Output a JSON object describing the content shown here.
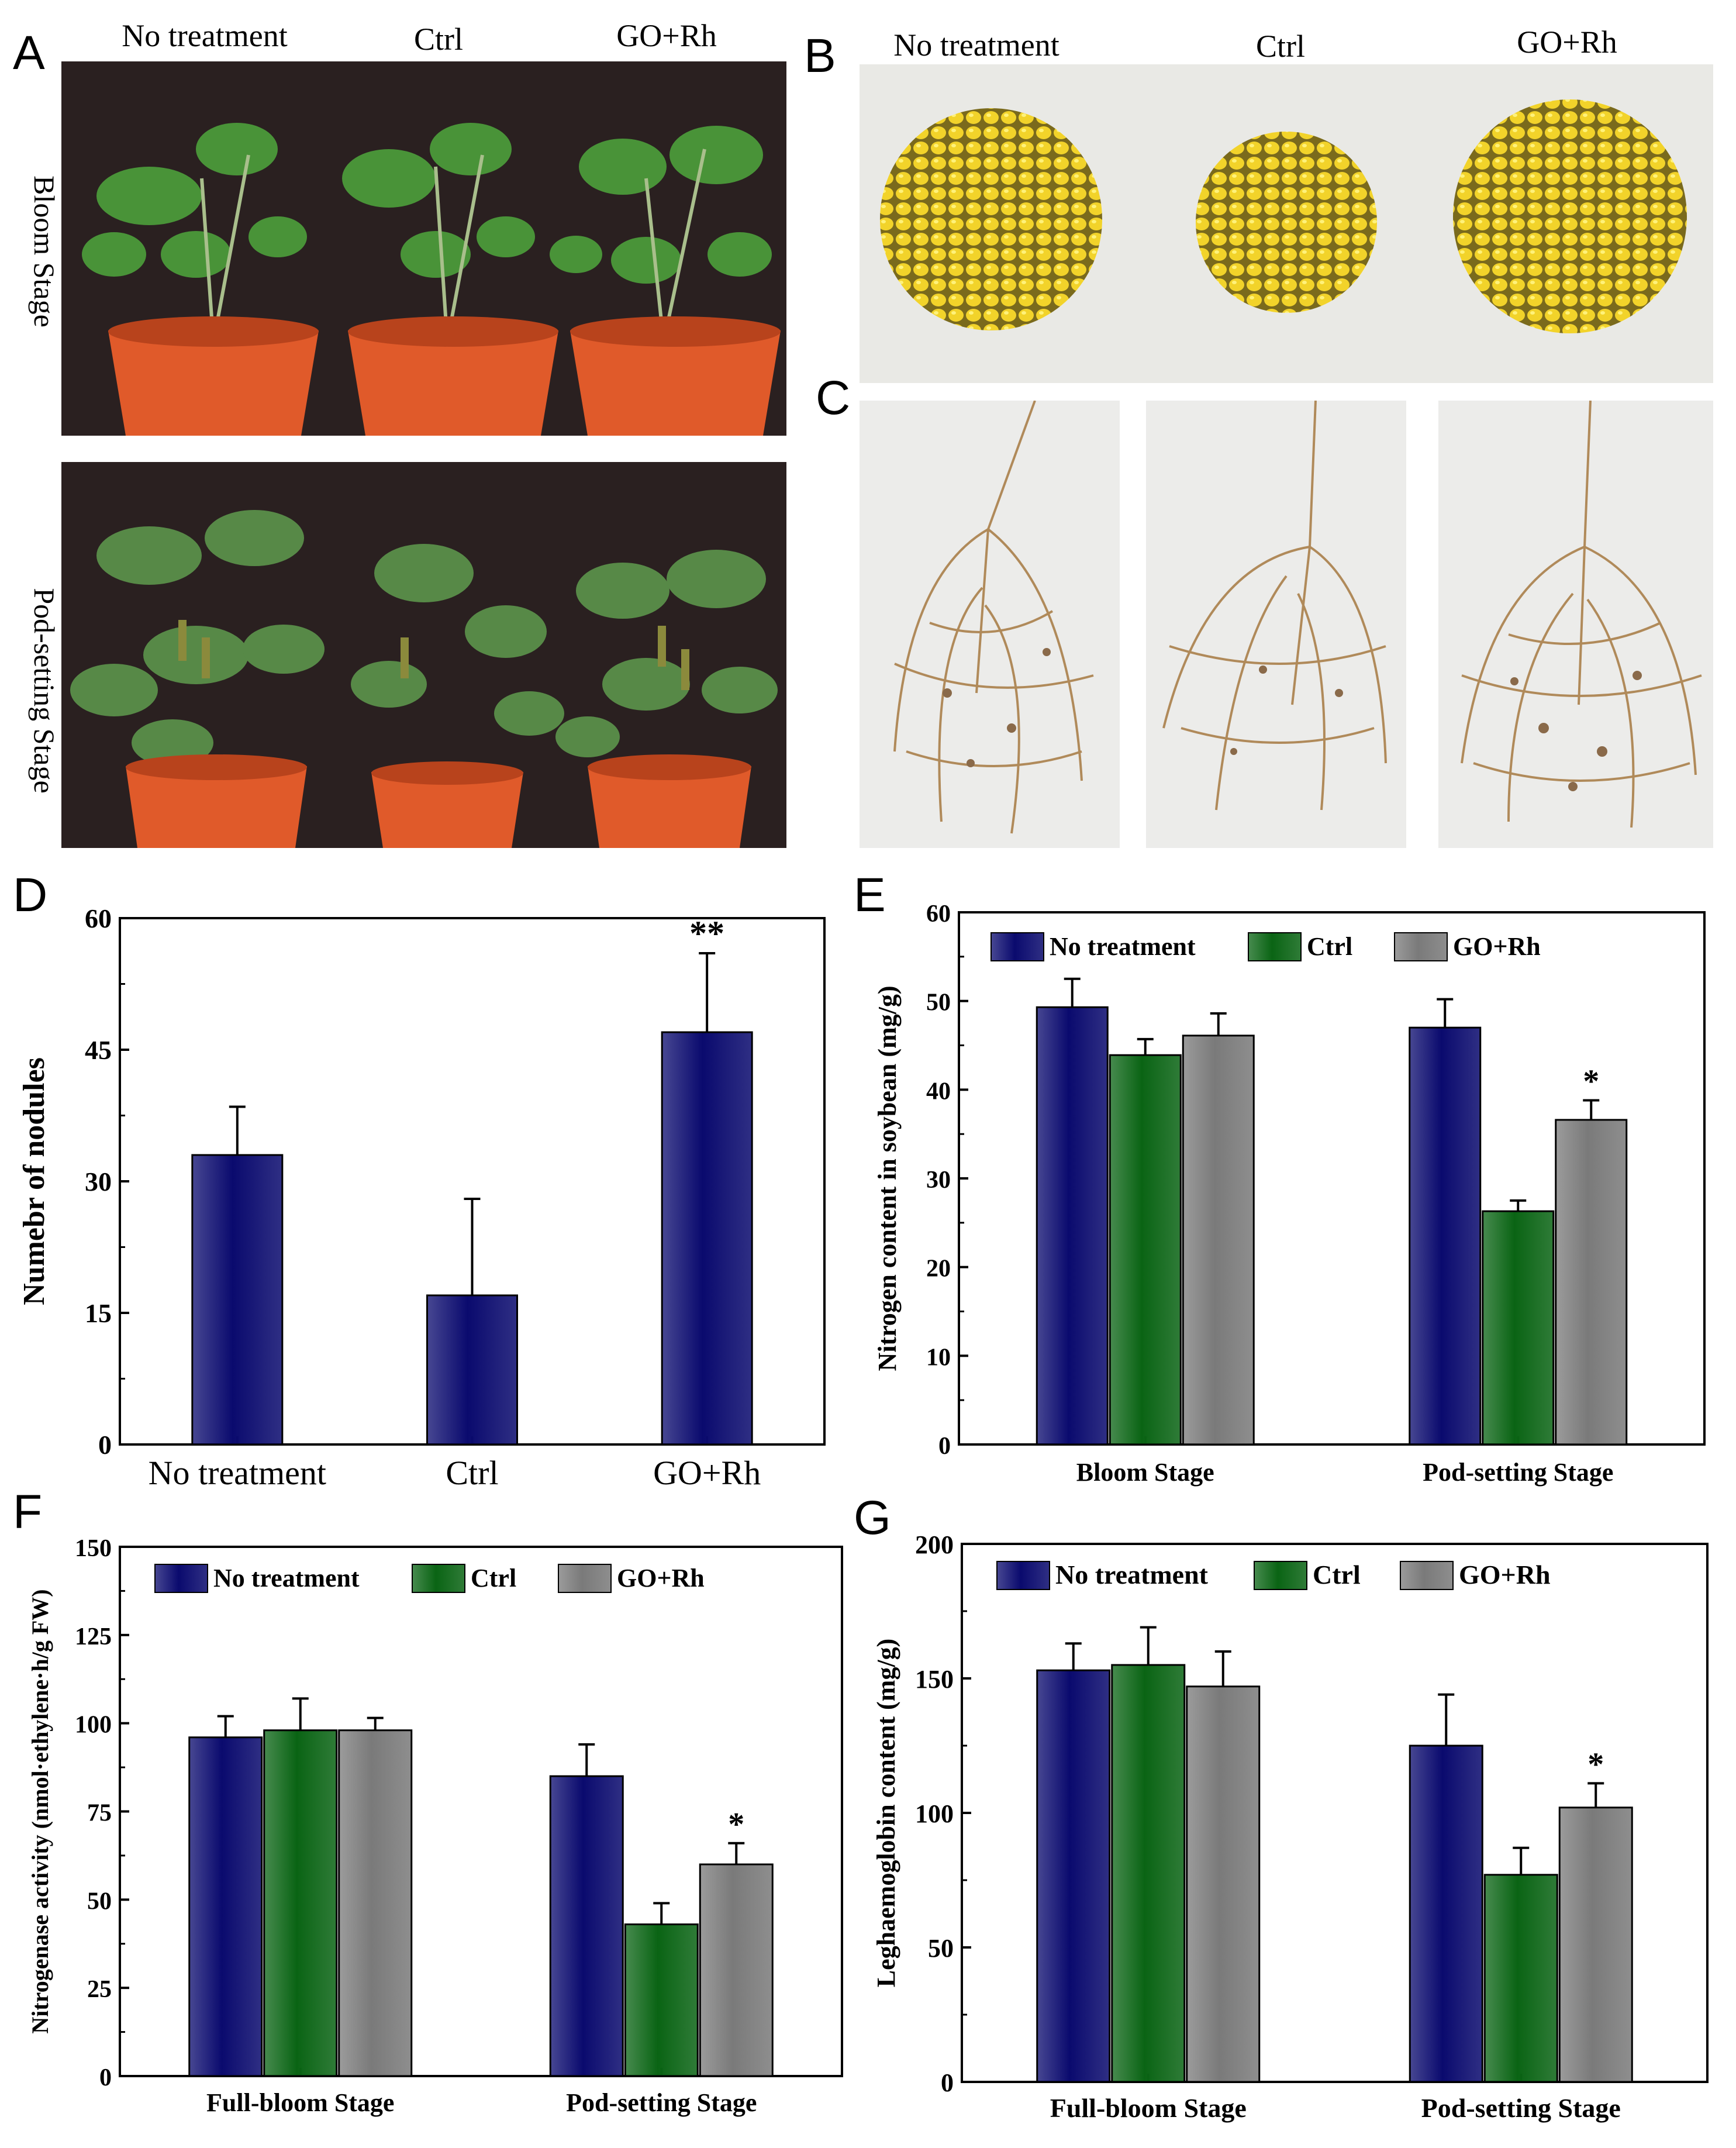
{
  "panels": {
    "A": {
      "letter": "A",
      "headers": [
        "No treatment",
        "Ctrl",
        "GO+Rh"
      ],
      "rows": [
        "Bloom Stage",
        "Pod-setting Stage"
      ],
      "image": "soybean-plants-in-pots-photo"
    },
    "B": {
      "letter": "B",
      "headers": [
        "No treatment",
        "Ctrl",
        "GO+Rh"
      ],
      "image": "soybean-seed-piles-photo"
    },
    "C": {
      "letter": "C",
      "image": "soybean-root-nodules-photo"
    }
  },
  "colors": {
    "no_treatment": "#0a0a6e",
    "ctrl": "#0a6414",
    "go_rh": "#7a7a7a"
  },
  "chart_data": [
    {
      "id": "D",
      "letter": "D",
      "type": "bar",
      "title": "",
      "xlabel": "",
      "ylabel": "Numebr of nodules",
      "categories": [
        "No treatment",
        "Ctrl",
        "GO+Rh"
      ],
      "series": [
        {
          "name": "Number of nodules",
          "values": [
            33,
            17,
            47
          ],
          "errors": [
            5.5,
            11,
            9
          ]
        }
      ],
      "significance": [
        "",
        "",
        "**"
      ],
      "ylim": [
        0,
        60
      ],
      "yticks": [
        "0",
        "15",
        "30",
        "45",
        "60"
      ],
      "grid": false,
      "legend": "none"
    },
    {
      "id": "E",
      "letter": "E",
      "type": "bar",
      "title": "",
      "xlabel": "",
      "ylabel": "Nitrogen content in soybean (mg/g)",
      "categories": [
        "Bloom Stage",
        "Pod-setting Stage"
      ],
      "series": [
        {
          "name": "No treatment",
          "values": [
            49.3,
            47.0
          ],
          "errors": [
            3.2,
            3.2
          ]
        },
        {
          "name": "Ctrl",
          "values": [
            43.9,
            26.3
          ],
          "errors": [
            1.8,
            1.2
          ]
        },
        {
          "name": "GO+Rh",
          "values": [
            46.1,
            36.6
          ],
          "errors": [
            2.5,
            2.2
          ]
        }
      ],
      "significance": [
        [
          "",
          "",
          ""
        ],
        [
          "",
          "",
          "*"
        ]
      ],
      "ylim": [
        0,
        60
      ],
      "yticks": [
        "0",
        "10",
        "20",
        "30",
        "40",
        "50",
        "60"
      ],
      "grid": false,
      "legend": "top"
    },
    {
      "id": "F",
      "letter": "F",
      "type": "bar",
      "title": "",
      "xlabel": "",
      "ylabel": "Nitrogenase activity (nmol·ethylene·h/g FW)",
      "categories": [
        "Full-bloom Stage",
        "Pod-setting Stage"
      ],
      "series": [
        {
          "name": "No treatment",
          "values": [
            96,
            85
          ],
          "errors": [
            6,
            9
          ]
        },
        {
          "name": "Ctrl",
          "values": [
            98,
            43
          ],
          "errors": [
            9,
            6
          ]
        },
        {
          "name": "GO+Rh",
          "values": [
            98,
            60
          ],
          "errors": [
            3.5,
            6
          ]
        }
      ],
      "significance": [
        [
          "",
          "",
          ""
        ],
        [
          "",
          "",
          "*"
        ]
      ],
      "ylim": [
        0,
        150
      ],
      "yticks": [
        "0",
        "25",
        "50",
        "75",
        "100",
        "125",
        "150"
      ],
      "grid": false,
      "legend": "top"
    },
    {
      "id": "G",
      "letter": "G",
      "type": "bar",
      "title": "",
      "xlabel": "",
      "ylabel": "Leghaemoglobin content (mg/g)",
      "categories": [
        "Full-bloom Stage",
        "Pod-setting Stage"
      ],
      "series": [
        {
          "name": "No treatment",
          "values": [
            153,
            125
          ],
          "errors": [
            10,
            19
          ]
        },
        {
          "name": "Ctrl",
          "values": [
            155,
            77
          ],
          "errors": [
            14,
            10
          ]
        },
        {
          "name": "GO+Rh",
          "values": [
            147,
            102
          ],
          "errors": [
            13,
            9
          ]
        }
      ],
      "significance": [
        [
          "",
          "",
          ""
        ],
        [
          "",
          "",
          "*"
        ]
      ],
      "ylim": [
        0,
        200
      ],
      "yticks": [
        "0",
        "50",
        "100",
        "150",
        "200"
      ],
      "grid": false,
      "legend": "top"
    }
  ]
}
